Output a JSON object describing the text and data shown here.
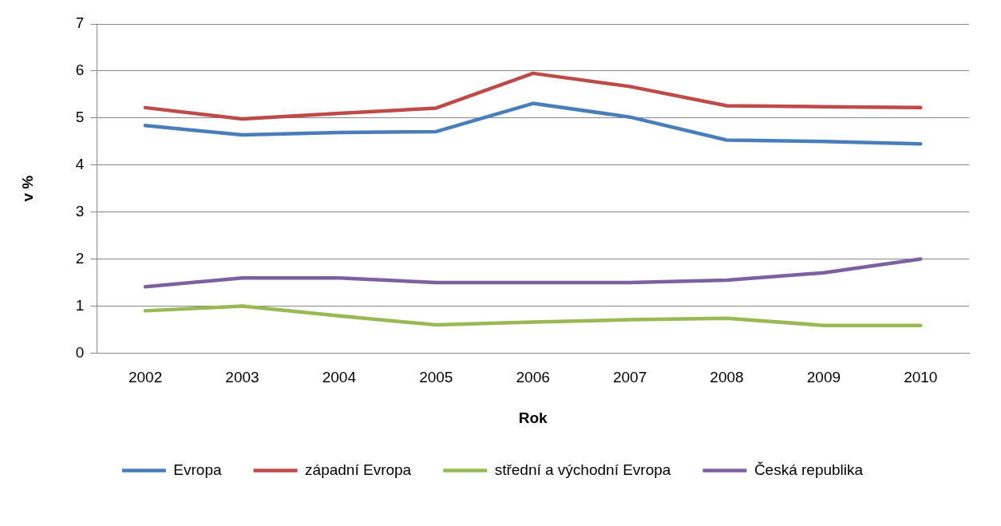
{
  "chart_data": {
    "type": "line",
    "xlabel": "Rok",
    "ylabel": "v %",
    "categories": [
      "2002",
      "2003",
      "2004",
      "2005",
      "2006",
      "2007",
      "2008",
      "2009",
      "2010"
    ],
    "series": [
      {
        "name": "Evropa",
        "color": "#4a7ebb",
        "values": [
          4.84,
          4.64,
          4.69,
          4.71,
          5.31,
          5.02,
          4.53,
          4.5,
          4.45
        ]
      },
      {
        "name": "západní Evropa",
        "color": "#be4b48",
        "values": [
          5.22,
          4.98,
          5.1,
          5.21,
          5.95,
          5.67,
          5.26,
          5.24,
          5.22
        ]
      },
      {
        "name": "střední a východní Evropa",
        "color": "#98b954",
        "values": [
          0.9,
          1.0,
          0.79,
          0.6,
          0.66,
          0.71,
          0.74,
          0.59,
          0.59
        ]
      },
      {
        "name": "Česká republika",
        "color": "#7d60a0",
        "values": [
          1.41,
          1.6,
          1.6,
          1.5,
          1.5,
          1.5,
          1.55,
          1.71,
          2.0
        ]
      }
    ],
    "ylim": [
      0,
      7
    ],
    "yticks": [
      0,
      1,
      2,
      3,
      4,
      5,
      6,
      7
    ],
    "grid": "y",
    "legend": "bottom",
    "marker": "none",
    "line_style": "solid"
  }
}
